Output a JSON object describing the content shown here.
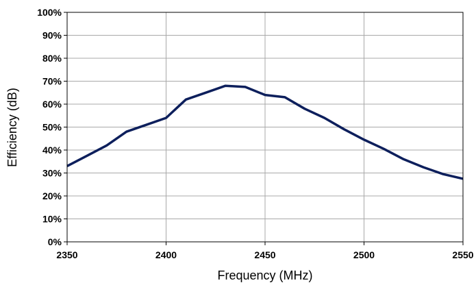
{
  "chart_data": {
    "type": "line",
    "title": "",
    "xlabel": "Frequency (MHz)",
    "ylabel": "Efficiency  (dB)",
    "xlim": [
      2350,
      2550
    ],
    "ylim": [
      0,
      100
    ],
    "x_ticks": [
      2350,
      2400,
      2450,
      2500,
      2550
    ],
    "x_tick_labels": [
      "2350",
      "2400",
      "2450",
      "2500",
      "2550"
    ],
    "y_ticks": [
      0,
      10,
      20,
      30,
      40,
      50,
      60,
      70,
      80,
      90,
      100
    ],
    "y_tick_labels": [
      "0%",
      "10%",
      "20%",
      "30%",
      "40%",
      "50%",
      "60%",
      "70%",
      "80%",
      "90%",
      "100%"
    ],
    "grid": true,
    "legend": "none",
    "series": [
      {
        "color": "#0d1f5c",
        "points": [
          [
            2350,
            33
          ],
          [
            2360,
            37.5
          ],
          [
            2370,
            42
          ],
          [
            2380,
            48
          ],
          [
            2390,
            51
          ],
          [
            2400,
            54
          ],
          [
            2410,
            62
          ],
          [
            2420,
            65
          ],
          [
            2430,
            68
          ],
          [
            2440,
            67.5
          ],
          [
            2450,
            64
          ],
          [
            2460,
            63
          ],
          [
            2470,
            58
          ],
          [
            2480,
            54
          ],
          [
            2490,
            49
          ],
          [
            2500,
            44.5
          ],
          [
            2510,
            40.5
          ],
          [
            2520,
            36
          ],
          [
            2530,
            32.5
          ],
          [
            2540,
            29.5
          ],
          [
            2550,
            27.5
          ]
        ]
      }
    ]
  }
}
